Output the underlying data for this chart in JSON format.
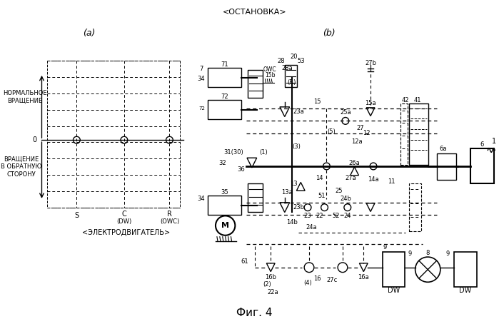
{
  "title_top": "<ОСТАНОВКА>",
  "label_a": "(a)",
  "label_b": "(b)",
  "fig_label": "Фиг. 4",
  "bg_color": "#ffffff",
  "line_color": "#000000",
  "font_size": 7
}
